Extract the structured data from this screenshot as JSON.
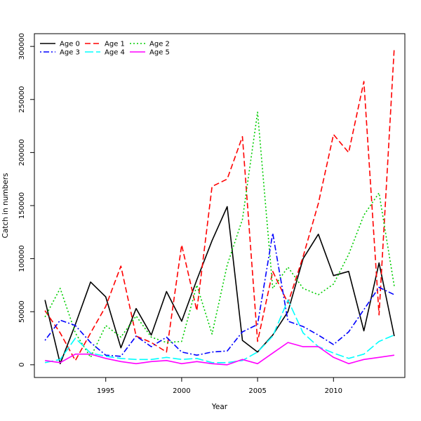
{
  "chart_data": {
    "type": "line",
    "title": "",
    "xlabel": "Year",
    "ylabel": "Catch in numbers",
    "xlim": [
      1990.3,
      2014.7
    ],
    "ylim": [
      -12000,
      312000
    ],
    "x_ticks": [
      1995,
      2000,
      2005,
      2010
    ],
    "y_ticks": [
      0,
      50000,
      100000,
      150000,
      200000,
      250000,
      300000
    ],
    "grid": false,
    "legend_position": "top-left",
    "x": [
      1991,
      1992,
      1993,
      1994,
      1995,
      1996,
      1997,
      1998,
      1999,
      2000,
      2001,
      2002,
      2003,
      2004,
      2005,
      2006,
      2007,
      2008,
      2009,
      2010,
      2011,
      2012,
      2013,
      2014
    ],
    "series": [
      {
        "name": "Age 0",
        "color": "#000000",
        "dash": "solid",
        "values": [
          61000,
          1000,
          38000,
          78000,
          64000,
          16000,
          53000,
          28000,
          69000,
          41000,
          80000,
          117000,
          149000,
          23000,
          12000,
          28000,
          50000,
          100000,
          123000,
          84000,
          88000,
          32000,
          96000,
          27000
        ]
      },
      {
        "name": "Age 1",
        "color": "#ff0000",
        "dash": "dashed",
        "values": [
          51000,
          30000,
          4000,
          30000,
          55000,
          93000,
          27000,
          21000,
          12000,
          113000,
          51000,
          168000,
          175000,
          215000,
          22000,
          88000,
          58000,
          102000,
          152000,
          217000,
          200000,
          267000,
          47000,
          299000
        ]
      },
      {
        "name": "Age 2",
        "color": "#00cd00",
        "dash": "dotted",
        "values": [
          45000,
          72000,
          30000,
          7000,
          37000,
          26000,
          46000,
          26000,
          21000,
          22000,
          75000,
          29000,
          94000,
          137000,
          238000,
          72000,
          92000,
          72000,
          66000,
          76000,
          104000,
          141000,
          162000,
          74000
        ]
      },
      {
        "name": "Age 3",
        "color": "#0000ff",
        "dash": "dotdash",
        "values": [
          23000,
          42000,
          37000,
          21000,
          9000,
          8000,
          27000,
          17000,
          26000,
          12000,
          9000,
          12000,
          13000,
          31000,
          38000,
          124000,
          41000,
          36000,
          28000,
          19000,
          31000,
          52000,
          73000,
          66000
        ]
      },
      {
        "name": "Age 4",
        "color": "#00ffff",
        "dash": "longdash",
        "values": [
          2000,
          5000,
          25000,
          11000,
          8000,
          6000,
          5000,
          5000,
          7000,
          5000,
          6000,
          2000,
          2000,
          4000,
          12000,
          27000,
          61000,
          30000,
          17000,
          11000,
          6000,
          10000,
          22000,
          28000
        ]
      },
      {
        "name": "Age 5",
        "color": "#ff00ff",
        "dash": "solid",
        "values": [
          4000,
          2000,
          10000,
          10000,
          6000,
          3000,
          1000,
          3000,
          4000,
          1000,
          3000,
          1000,
          0,
          5000,
          1000,
          11000,
          21000,
          17000,
          17000,
          7000,
          1000,
          5000,
          7000,
          9000
        ]
      }
    ]
  }
}
